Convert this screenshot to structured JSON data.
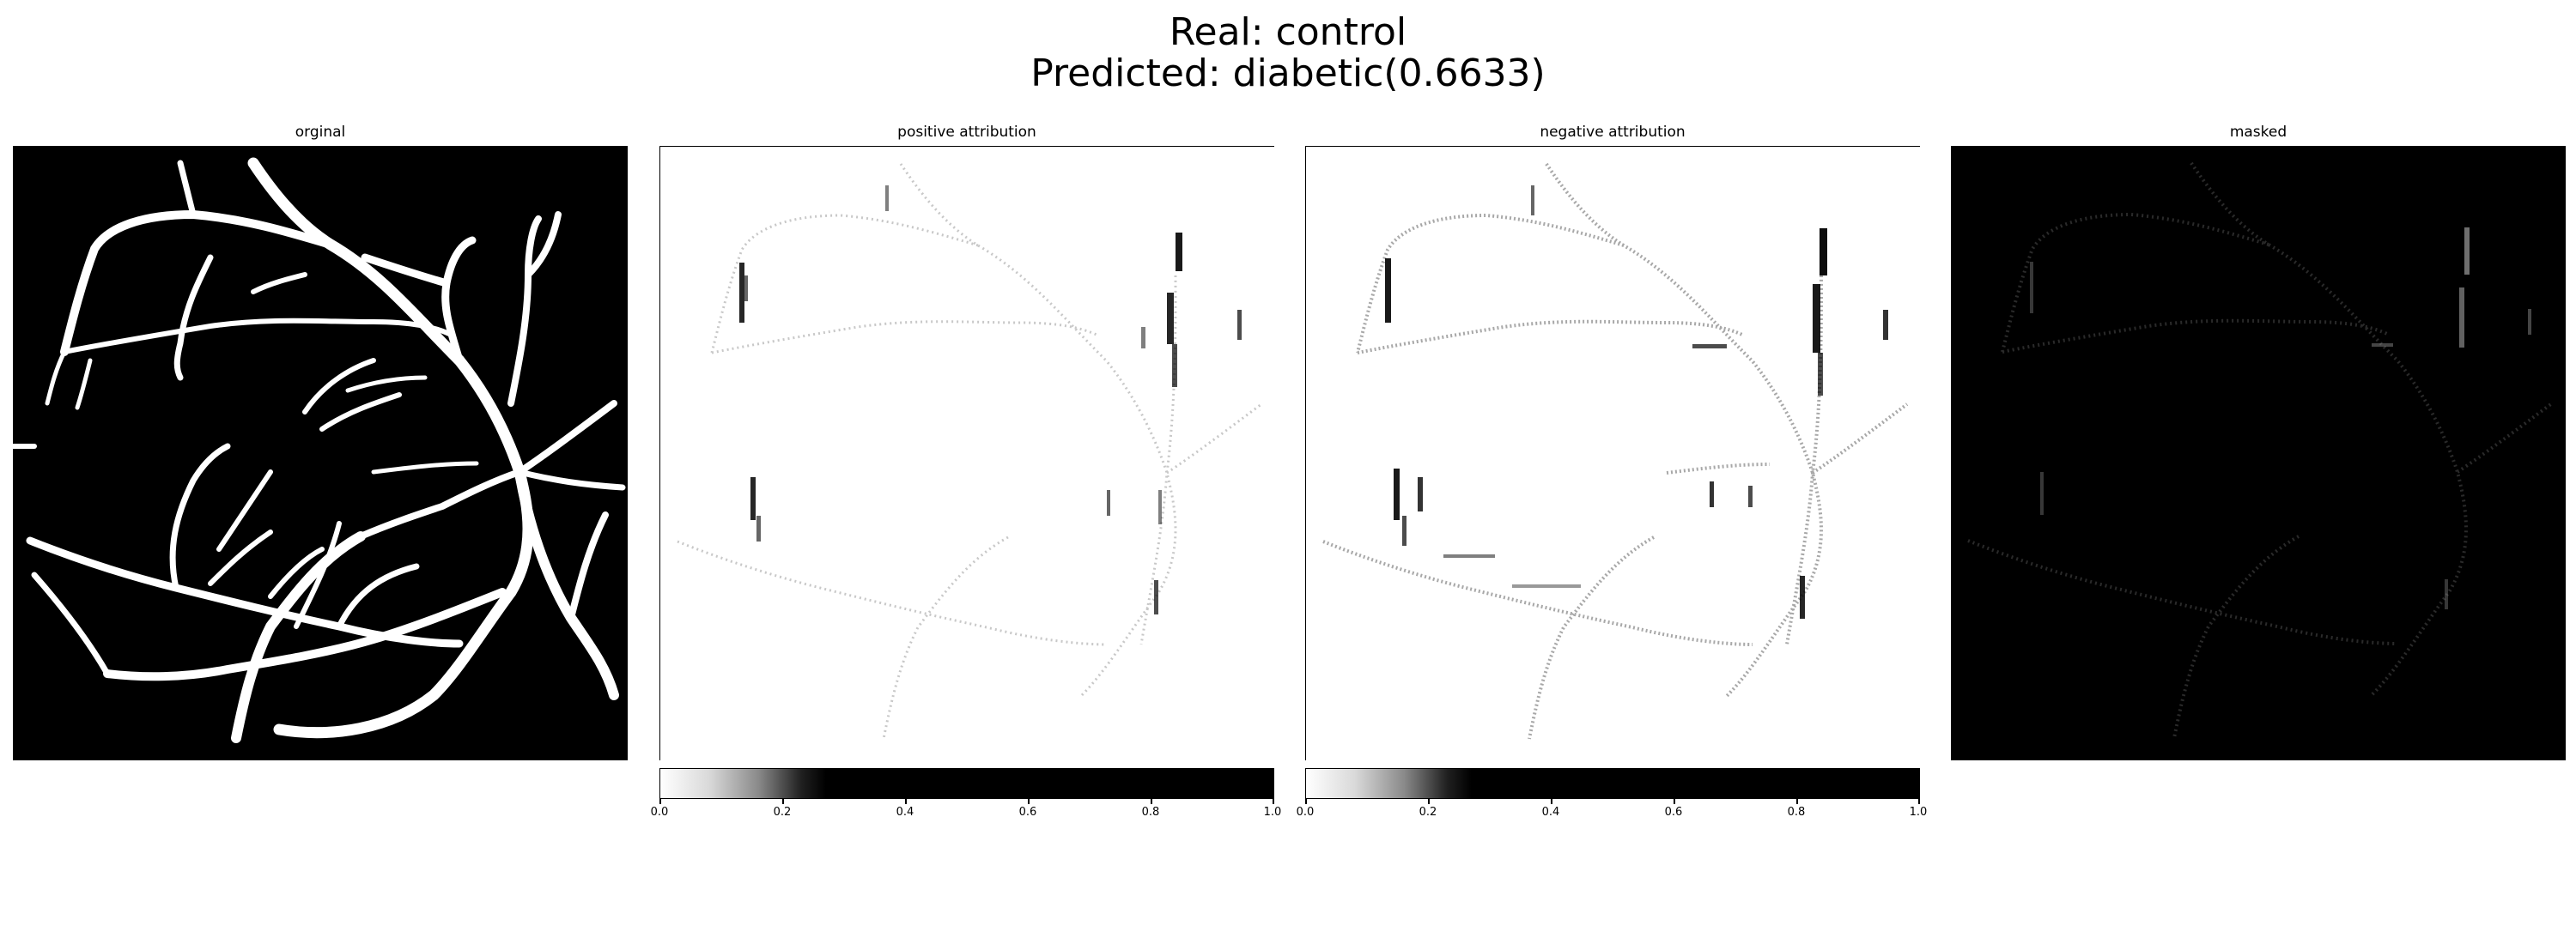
{
  "figure": {
    "title_line1": "Real: control",
    "title_line2": "Predicted: diabetic(0.6633)"
  },
  "panels": [
    {
      "title": "orginal",
      "cmap": "gray"
    },
    {
      "title": "positive attribution",
      "cmap": "gray_r"
    },
    {
      "title": "negative attribution",
      "cmap": "gray_r"
    },
    {
      "title": "masked",
      "cmap": "gray"
    }
  ],
  "colorbars": [
    {
      "ticks": [
        "0.0",
        "0.2",
        "0.4",
        "0.6",
        "0.8",
        "1.0"
      ]
    },
    {
      "ticks": [
        "0.0",
        "0.2",
        "0.4",
        "0.6",
        "0.8",
        "1.0"
      ]
    }
  ],
  "colors": {
    "vessel": "#ffffff",
    "background_dark": "#000000",
    "background_light": "#ffffff"
  }
}
